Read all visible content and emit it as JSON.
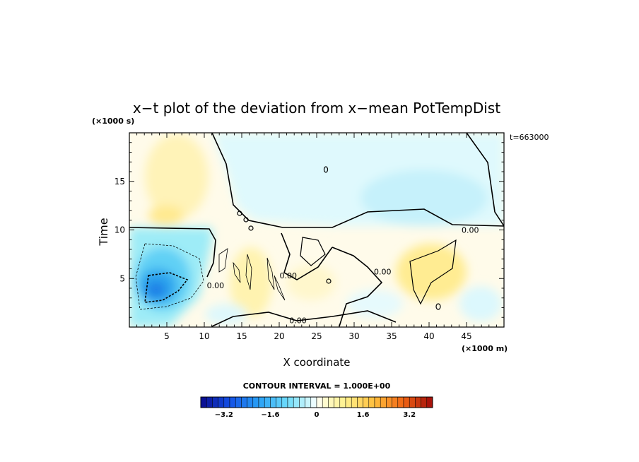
{
  "chart_data": {
    "type": "heatmap",
    "title": "x−t plot of the deviation from x−mean PotTempDist",
    "xlabel": "X coordinate",
    "ylabel": "Time",
    "x_unit": "(×1000 m)",
    "y_unit": "(×1000 s)",
    "time_stamp": "t=663000",
    "xlim": [
      0,
      50
    ],
    "ylim": [
      0,
      20
    ],
    "x_ticks": [
      {
        "v": 5,
        "label": "5"
      },
      {
        "v": 10,
        "label": "10"
      },
      {
        "v": 15,
        "label": "15"
      },
      {
        "v": 20,
        "label": "20"
      },
      {
        "v": 25,
        "label": "25"
      },
      {
        "v": 30,
        "label": "30"
      },
      {
        "v": 35,
        "label": "35"
      },
      {
        "v": 40,
        "label": "40"
      },
      {
        "v": 45,
        "label": "45"
      }
    ],
    "y_ticks": [
      {
        "v": 5,
        "label": "5"
      },
      {
        "v": 10,
        "label": "10"
      },
      {
        "v": 15,
        "label": "15"
      }
    ],
    "contour_interval_text": "CONTOUR INTERVAL = 1.000E+00",
    "contour_labels": [
      {
        "x": 22.5,
        "y": 0.7,
        "text": "0.00"
      },
      {
        "x": 11.5,
        "y": 4.3,
        "text": "0.00"
      },
      {
        "x": 21.2,
        "y": 5.3,
        "text": "0.00"
      },
      {
        "x": 33.8,
        "y": 5.7,
        "text": "0.00"
      },
      {
        "x": 45.5,
        "y": 10.0,
        "text": "0.00"
      }
    ],
    "colorbar": {
      "range": [
        -4,
        4
      ],
      "step": 0.2,
      "tick_labels": [
        {
          "v": -3.2,
          "label": "−3.2"
        },
        {
          "v": -1.6,
          "label": "−1.6"
        },
        {
          "v": 0,
          "label": "0"
        },
        {
          "v": 1.6,
          "label": "1.6"
        },
        {
          "v": 3.2,
          "label": "3.2"
        }
      ]
    },
    "features": [
      {
        "kind": "cold_core",
        "x": 3.5,
        "y": 3.8,
        "value": -3.0
      },
      {
        "kind": "cool_region",
        "x_range": [
          0,
          10
        ],
        "y_range": [
          1,
          10
        ],
        "value": -1.4
      },
      {
        "kind": "warm_band",
        "x_range": [
          0,
          30
        ],
        "y_range": [
          10,
          20
        ],
        "value": 0.4
      },
      {
        "kind": "cool_band",
        "x_range": [
          12,
          50
        ],
        "y_range": [
          10,
          20
        ],
        "value": -0.3
      },
      {
        "kind": "warm_patch",
        "x": 40,
        "y": 6,
        "value": 1.1
      }
    ]
  }
}
